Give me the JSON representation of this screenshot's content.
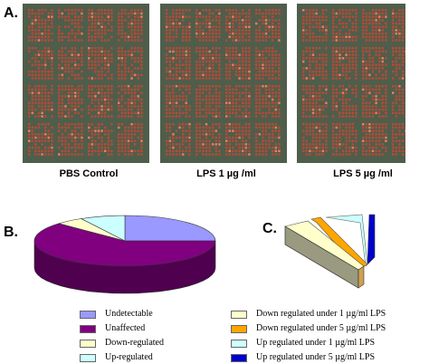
{
  "panels": {
    "a": "A.",
    "b": "B.",
    "c": "C."
  },
  "arrays": [
    {
      "caption": "PBS Control"
    },
    {
      "caption": "LPS 1 µg /ml"
    },
    {
      "caption": "LPS 5 µg /ml"
    }
  ],
  "colors": {
    "array_bg": "#4f5e4b",
    "spot": "#b64a37",
    "spot_bright": "#ff7a5c",
    "undetectable": "#9999ff",
    "unaffected": "#800080",
    "down": "#ffffcc",
    "up": "#ccffff",
    "down_1": "#ffffcc",
    "down_5": "#ffa500",
    "up_1": "#ccffff",
    "up_5": "#0000cc"
  },
  "chart_data": [
    {
      "type": "pie",
      "slices": [
        {
          "label": "Undetectable",
          "value": 25,
          "color": "#9999ff"
        },
        {
          "label": "Unaffected",
          "value": 62,
          "color": "#800080"
        },
        {
          "label": "Down-regulated",
          "value": 5,
          "color": "#ffffcc"
        },
        {
          "label": "Up-regulated",
          "value": 8,
          "color": "#ccffff"
        }
      ]
    },
    {
      "type": "bar",
      "categories": [
        "Down regulated under 1 µg/ml LPS",
        "Down regulated under 5 µg/ml LPS",
        "Up regulated under 1 µg/ml LPS",
        "Up regulated under 5 µg/ml LPS"
      ],
      "values": [
        5,
        1,
        6,
        1
      ]
    }
  ],
  "legend_left": [
    {
      "label": "Undetectable",
      "color": "#9999ff"
    },
    {
      "label": "Unaffected",
      "color": "#800080"
    },
    {
      "label": "Down-regulated",
      "color": "#ffffcc"
    },
    {
      "label": "Up-regulated",
      "color": "#ccffff"
    }
  ],
  "legend_right": [
    {
      "label": "Down regulated under 1 µg/ml LPS",
      "color": "#ffffcc"
    },
    {
      "label": "Down regulated under 5 µg/ml LPS",
      "color": "#ffa500"
    },
    {
      "label": "Up regulated under 1 µg/ml LPS",
      "color": "#ccffff"
    },
    {
      "label": "Up regulated under 5 µg/ml LPS",
      "color": "#0000cc"
    }
  ]
}
